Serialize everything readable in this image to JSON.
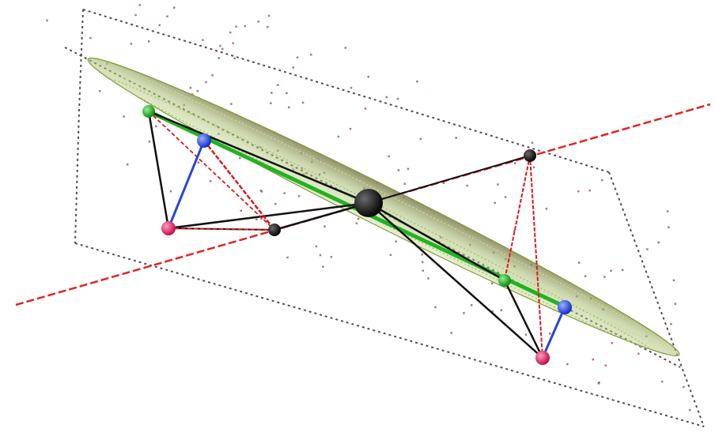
{
  "diagram": {
    "description_hidden": "",
    "colors": {
      "background": "#ffffff",
      "plane_outline": "#5a4a55",
      "ellipsoid_fill": "#9fb56a",
      "ellipsoid_stroke": "#7f9a3a",
      "ellipsoid_shadow": "#7c7a52",
      "axis_red": "#e32222",
      "black_line": "#111111",
      "red_line": "#d81b1b",
      "blue_line": "#2747d8",
      "green_line": "#22b322",
      "scatter": "#8a4a6a",
      "green_ball": "#1fa81f",
      "blue_ball": "#1f3fe6",
      "magenta_ball": "#e0185a",
      "black_ball": "#0a0a0a"
    },
    "legend": []
  }
}
